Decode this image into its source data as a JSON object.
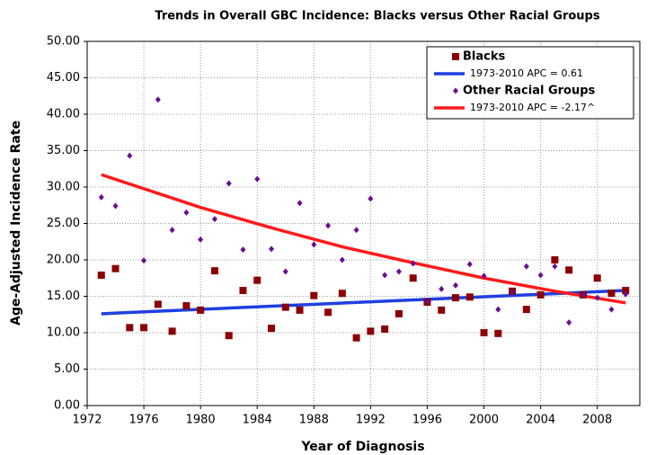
{
  "chart_data": {
    "type": "scatter",
    "title": "Trends in Overall GBC Incidence: Blacks versus Other Racial Groups",
    "x_label": "Year of Diagnosis",
    "y_label": "Age-Adjusted Incidence Rate",
    "xlim": [
      1972,
      2011
    ],
    "ylim": [
      0,
      50
    ],
    "xticks": [
      1972,
      1976,
      1980,
      1984,
      1988,
      1992,
      1996,
      2000,
      2004,
      2008
    ],
    "yticks": [
      {
        "value": 0,
        "label": "0.00"
      },
      {
        "value": 5,
        "label": "5.00"
      },
      {
        "value": 10,
        "label": "10.00"
      },
      {
        "value": 15,
        "label": "15.00"
      },
      {
        "value": 20,
        "label": "20.00"
      },
      {
        "value": 25,
        "label": "25.00"
      },
      {
        "value": 30,
        "label": "30.00"
      },
      {
        "value": 35,
        "label": "35.00"
      },
      {
        "value": 40,
        "label": "40.00"
      },
      {
        "value": 45,
        "label": "45.00"
      },
      {
        "value": 50,
        "label": "50.00"
      }
    ],
    "grid": true,
    "legend_position": "upper right",
    "x": [
      1973,
      1974,
      1975,
      1976,
      1977,
      1978,
      1979,
      1980,
      1981,
      1982,
      1983,
      1984,
      1985,
      1986,
      1987,
      1988,
      1989,
      1990,
      1991,
      1992,
      1993,
      1994,
      1995,
      1996,
      1997,
      1998,
      1999,
      2000,
      2001,
      2002,
      2003,
      2004,
      2005,
      2006,
      2007,
      2008,
      2009,
      2010
    ],
    "series": [
      {
        "name": "Blacks",
        "type": "scatter",
        "marker": "square",
        "color": "#8b0000",
        "values": [
          17.9,
          18.8,
          10.7,
          10.7,
          13.9,
          10.2,
          13.7,
          13.1,
          18.5,
          9.6,
          15.8,
          17.2,
          10.6,
          13.5,
          13.1,
          15.1,
          12.8,
          15.4,
          9.3,
          10.2,
          10.5,
          12.6,
          17.5,
          14.2,
          13.1,
          14.8,
          14.9,
          10.0,
          9.9,
          15.7,
          13.2,
          15.2,
          20.0,
          18.6,
          15.2,
          17.5,
          15.4,
          15.8
        ]
      },
      {
        "name": "1973-2010 APC  = 0.61",
        "type": "line",
        "color": "#1f3fe0",
        "x": [
          1973,
          2010
        ],
        "values": [
          12.6,
          15.8
        ]
      },
      {
        "name": "Other Racial Groups",
        "type": "scatter",
        "marker": "diamond",
        "color": "#6a0d91",
        "values": [
          28.6,
          27.4,
          34.3,
          19.9,
          42.0,
          24.1,
          26.5,
          22.8,
          25.6,
          30.5,
          21.4,
          31.1,
          21.5,
          18.4,
          27.8,
          22.1,
          24.7,
          20.0,
          24.1,
          28.4,
          17.9,
          18.4,
          19.5,
          14.3,
          16.0,
          16.5,
          19.4,
          17.8,
          13.2,
          15.6,
          19.1,
          17.9,
          19.1,
          11.4,
          15.2,
          14.8,
          13.2,
          15.3
        ]
      },
      {
        "name": "1973-2010 APC  = -2.17^",
        "type": "line",
        "color": "#ff1a1a",
        "x": [
          1973,
          1980,
          1985,
          1990,
          1995,
          2000,
          2005,
          2010
        ],
        "values": [
          31.7,
          27.2,
          24.4,
          21.8,
          19.6,
          17.5,
          15.7,
          14.1
        ]
      }
    ]
  }
}
